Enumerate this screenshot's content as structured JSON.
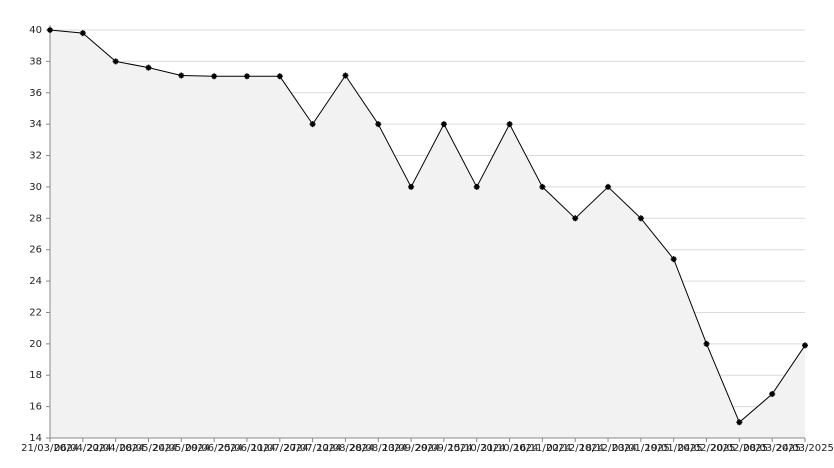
{
  "chart_data": {
    "type": "area",
    "x": [
      "21/03/2024",
      "06/04/2024",
      "22/04/2024",
      "08/05/2024",
      "24/05/2024",
      "09/06/2024",
      "25/06/2024",
      "11/07/2024",
      "27/07/2024",
      "12/08/2024",
      "28/08/2024",
      "13/09/2024",
      "29/09/2024",
      "15/10/2024",
      "31/10/2024",
      "16/11/2024",
      "02/12/2024",
      "18/12/2024",
      "03/01/2025",
      "19/01/2025",
      "04/02/2025",
      "20/02/2025",
      "08/03/2025",
      "24/03/2025"
    ],
    "values": [
      40,
      39.8,
      38,
      37.6,
      37.1,
      37.05,
      37.05,
      37.05,
      34,
      37.1,
      34,
      30,
      34,
      30,
      34,
      30,
      28,
      30,
      28,
      25.4,
      20,
      15,
      16.8,
      19.9
    ],
    "color": "#000000",
    "fill": "#f2f2f2",
    "ylim": [
      14,
      40
    ],
    "yticks": [
      14,
      16,
      18,
      20,
      22,
      24,
      26,
      28,
      30,
      32,
      34,
      36,
      38,
      40
    ],
    "grid": true
  }
}
